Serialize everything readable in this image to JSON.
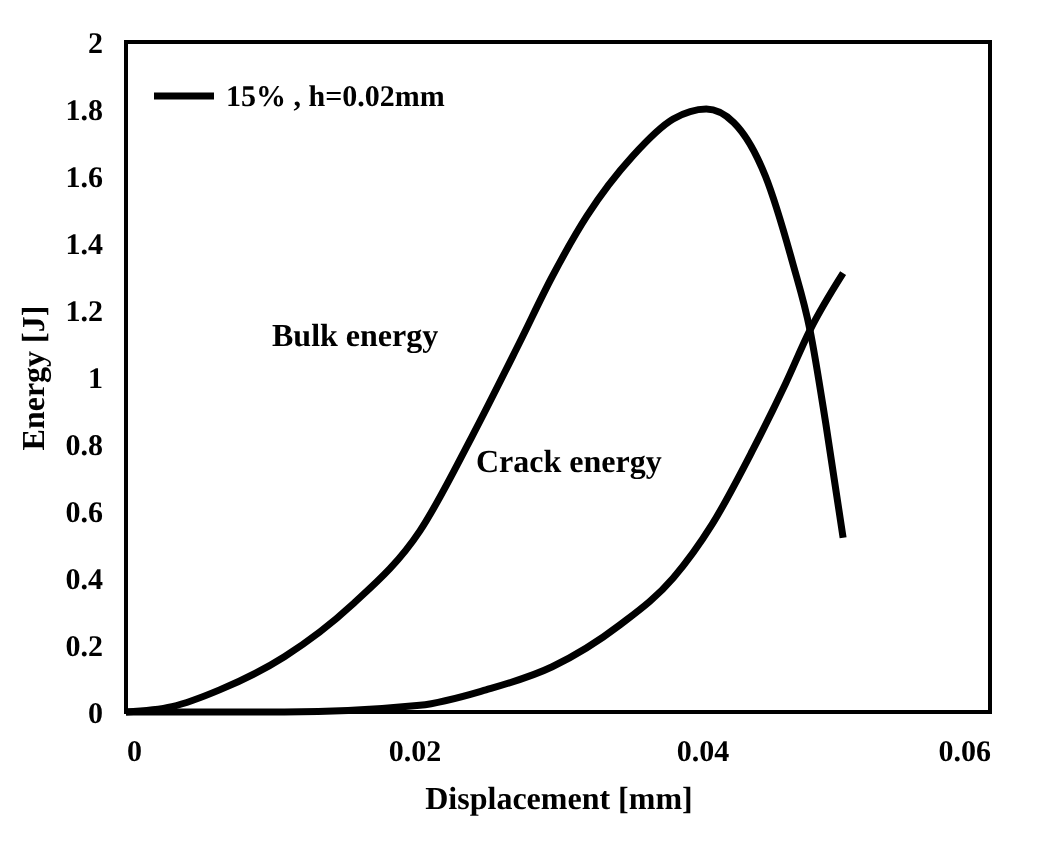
{
  "chart_data": {
    "type": "line",
    "xlabel": "Displacement [mm]",
    "ylabel": "Energy [J]",
    "series": [
      {
        "name": "15% , h=0.02mm",
        "color": "#000000",
        "x": [
          0,
          0.0032,
          0.0065,
          0.011,
          0.0157,
          0.0204,
          0.024,
          0.0273,
          0.0296,
          0.032,
          0.0352,
          0.038,
          0.0403,
          0.0422,
          0.0444,
          0.0463,
          0.0475,
          0.0486,
          0.0498
        ],
        "values": [
          0,
          0.016,
          0.066,
          0.165,
          0.32,
          0.54,
          0.82,
          1.1,
          1.3,
          1.48,
          1.66,
          1.77,
          1.8,
          1.76,
          1.6,
          1.34,
          1.14,
          0.86,
          0.52
        ]
      },
      {
        "color": "#000000",
        "x": [
          0,
          0.011,
          0.0204,
          0.025,
          0.0296,
          0.0343,
          0.038,
          0.0407,
          0.0435,
          0.0458,
          0.0475,
          0.0498
        ],
        "values": [
          0,
          0,
          0.02,
          0.066,
          0.135,
          0.26,
          0.4,
          0.56,
          0.78,
          0.98,
          1.14,
          1.31
        ]
      }
    ],
    "annotations": [
      "Bulk energy",
      "Crack energy"
    ],
    "xlim": [
      0,
      0.06
    ],
    "xticks": [
      0,
      0.02,
      0.04,
      0.06
    ],
    "ylim": [
      0,
      2
    ],
    "yticks": [
      0,
      0.2,
      0.4,
      0.6,
      0.8,
      1,
      1.2,
      1.4,
      1.6,
      1.8,
      2
    ],
    "grid": false,
    "legend": "top left",
    "marker": "none",
    "line_style": "solid"
  }
}
